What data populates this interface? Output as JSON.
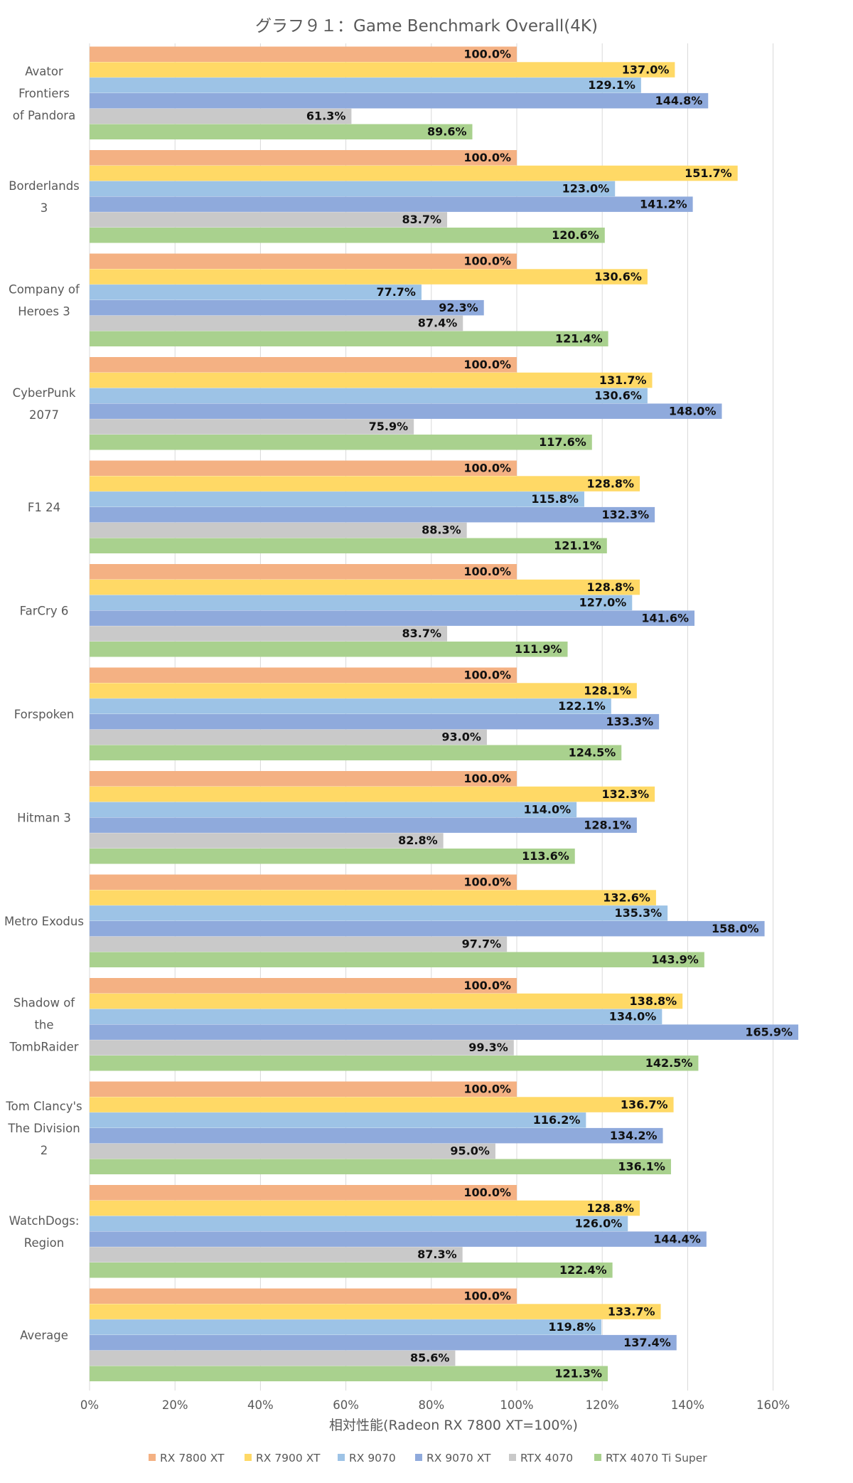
{
  "chart_data": {
    "type": "bar",
    "orientation": "horizontal",
    "title": "グラフ９１：Game Benchmark Overall(4K)",
    "xlabel": "相対性能(Radeon RX 7800 XT=100%)",
    "xlim": [
      0,
      170
    ],
    "xticks": [
      0,
      20,
      40,
      60,
      80,
      100,
      120,
      140,
      160
    ],
    "xtick_labels": [
      "0%",
      "20%",
      "40%",
      "60%",
      "80%",
      "100%",
      "120%",
      "140%",
      "160%"
    ],
    "grid": true,
    "legend_position": "bottom",
    "categories": [
      [
        "Avator",
        "Frontiers",
        "of Pandora"
      ],
      [
        "Borderlands",
        "3"
      ],
      [
        "Company of",
        "Heroes 3"
      ],
      [
        "CyberPunk",
        "2077"
      ],
      [
        "F1 24"
      ],
      [
        "FarCry 6"
      ],
      [
        "Forspoken"
      ],
      [
        "Hitman 3"
      ],
      [
        "Metro Exodus"
      ],
      [
        "Shadow of",
        "the",
        "TombRaider"
      ],
      [
        "Tom Clancy's",
        "The Division",
        "2"
      ],
      [
        "WatchDogs:",
        "Region"
      ],
      [
        "Average"
      ]
    ],
    "series": [
      {
        "name": "RX 7800 XT",
        "color": "#F4B183",
        "values": [
          100.0,
          100.0,
          100.0,
          100.0,
          100.0,
          100.0,
          100.0,
          100.0,
          100.0,
          100.0,
          100.0,
          100.0,
          100.0
        ]
      },
      {
        "name": "RX 7900 XT",
        "color": "#FFD966",
        "values": [
          137.0,
          151.7,
          130.6,
          131.7,
          128.8,
          128.8,
          128.1,
          132.3,
          132.6,
          138.8,
          136.7,
          128.8,
          133.7
        ]
      },
      {
        "name": "RX 9070",
        "color": "#9DC3E6",
        "values": [
          129.1,
          123.0,
          77.7,
          130.6,
          115.8,
          127.0,
          122.1,
          114.0,
          135.3,
          134.0,
          116.2,
          126.0,
          119.8
        ]
      },
      {
        "name": "RX 9070 XT",
        "color": "#8FAADC",
        "values": [
          144.8,
          141.2,
          92.3,
          148.0,
          132.3,
          141.6,
          133.3,
          128.1,
          158.0,
          165.9,
          134.2,
          144.4,
          137.4
        ]
      },
      {
        "name": "RTX 4070",
        "color": "#C9C9C9",
        "values": [
          61.3,
          83.7,
          87.4,
          75.9,
          88.3,
          83.7,
          93.0,
          82.8,
          97.7,
          99.3,
          95.0,
          87.3,
          85.6
        ]
      },
      {
        "name": "RTX 4070 Ti Super",
        "color": "#A9D18E",
        "values": [
          89.6,
          120.6,
          121.4,
          117.6,
          121.1,
          111.9,
          124.5,
          113.6,
          143.9,
          142.5,
          136.1,
          122.4,
          121.3
        ]
      }
    ]
  }
}
